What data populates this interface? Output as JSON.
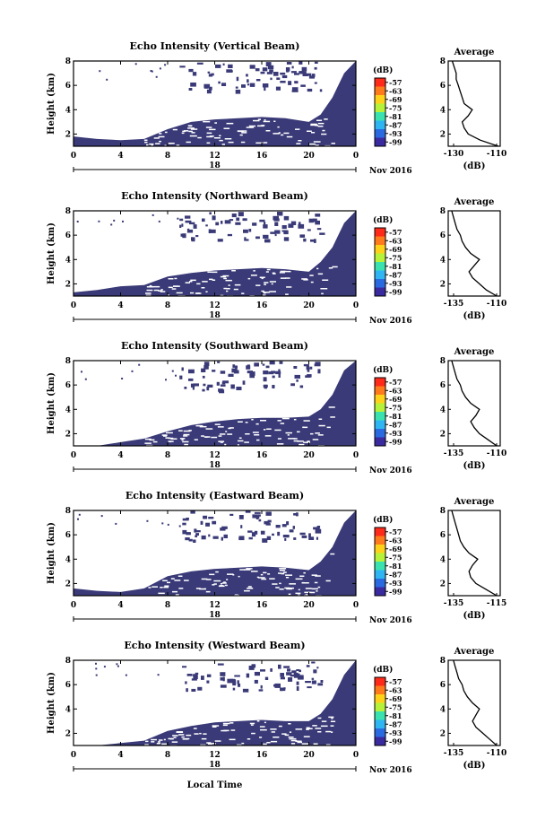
{
  "colorbar": {
    "unit": "(dB)",
    "labels": [
      "-57",
      "-63",
      "-69",
      "-75",
      "-81",
      "-87",
      "-93",
      "-99"
    ],
    "colors": [
      "#ff2a1a",
      "#ff7a1a",
      "#ffd21a",
      "#b6f23a",
      "#3ae2b0",
      "#2fb6f2",
      "#2a6ae0",
      "#3a2aa0"
    ]
  },
  "colors": {
    "echo_fill": "#3a3a78",
    "line": "#000000",
    "background": "#ffffff"
  },
  "shared_x": {
    "ticks": [
      "0",
      "4",
      "8",
      "12",
      "16",
      "20",
      "0"
    ],
    "hours": [
      0,
      4,
      8,
      12,
      16,
      20,
      24
    ],
    "date_tick": "18",
    "month_label": "Nov 2016",
    "xlabel": "Local Time"
  },
  "chart_data": [
    {
      "type": "heatmap",
      "title": "Echo Intensity (Vertical Beam)",
      "ylabel": "Height (km)",
      "yticks": [
        "2",
        "4",
        "6",
        "8"
      ],
      "ylim": [
        1,
        8
      ],
      "xlim": [
        0,
        24
      ],
      "echo_boundary_height_km": {
        "x": [
          0,
          2,
          4,
          6,
          8,
          10,
          12,
          14,
          16,
          18,
          20,
          21,
          22,
          23,
          24
        ],
        "y": [
          1.8,
          1.6,
          1.5,
          1.6,
          2.4,
          3.0,
          3.2,
          3.3,
          3.4,
          3.3,
          3.0,
          3.6,
          5.0,
          7.0,
          8.0
        ]
      },
      "average": {
        "title": "Average",
        "xlabel": "(dB)",
        "xticks": [
          "-130",
          "-110"
        ],
        "xlim": [
          -134,
          -108
        ],
        "yticks": [
          "2",
          "4",
          "6",
          "8"
        ],
        "profile": {
          "height_km": [
            1.0,
            1.5,
            2.0,
            2.5,
            3.0,
            3.5,
            4.0,
            4.5,
            5.0,
            5.5,
            6.0,
            6.5,
            7.0,
            7.5,
            8.0
          ],
          "db": [
            -109,
            -118,
            -124,
            -126,
            -127,
            -124,
            -122,
            -126,
            -127,
            -128,
            -129,
            -130,
            -130,
            -131,
            -132
          ]
        }
      }
    },
    {
      "type": "heatmap",
      "title": "Echo Intensity (Northward Beam)",
      "ylabel": "Height (km)",
      "yticks": [
        "2",
        "4",
        "6",
        "8"
      ],
      "ylim": [
        1,
        8
      ],
      "xlim": [
        0,
        24
      ],
      "echo_boundary_height_km": {
        "x": [
          0,
          2,
          4,
          6,
          8,
          10,
          12,
          14,
          16,
          18,
          20,
          21,
          22,
          23,
          24
        ],
        "y": [
          1.3,
          1.5,
          1.8,
          1.9,
          2.6,
          2.9,
          3.1,
          3.2,
          3.3,
          3.2,
          3.0,
          3.8,
          5.0,
          7.0,
          8.0
        ]
      },
      "average": {
        "title": "Average",
        "xlabel": "(dB)",
        "xticks": [
          "-135",
          "-110"
        ],
        "xlim": [
          -138,
          -108
        ],
        "yticks": [
          "2",
          "4",
          "6",
          "8"
        ],
        "profile": {
          "height_km": [
            1.0,
            1.5,
            2.0,
            2.5,
            3.0,
            3.5,
            4.0,
            4.5,
            5.0,
            5.5,
            6.0,
            6.5,
            7.0,
            7.5,
            8.0
          ],
          "db": [
            -110,
            -116,
            -120,
            -124,
            -126,
            -123,
            -120,
            -125,
            -128,
            -130,
            -131,
            -133,
            -134,
            -135,
            -136
          ]
        }
      }
    },
    {
      "type": "heatmap",
      "title": "Echo Intensity (Southward Beam)",
      "ylabel": "Height (km)",
      "yticks": [
        "2",
        "4",
        "6",
        "8"
      ],
      "ylim": [
        1,
        8
      ],
      "xlim": [
        0,
        24
      ],
      "echo_boundary_height_km": {
        "x": [
          0,
          2,
          4,
          6,
          8,
          10,
          12,
          14,
          16,
          18,
          20,
          21,
          22,
          23,
          24
        ],
        "y": [
          1.0,
          1.0,
          1.3,
          1.6,
          2.2,
          2.7,
          3.0,
          3.2,
          3.3,
          3.3,
          3.4,
          4.0,
          5.2,
          7.2,
          8.0
        ]
      },
      "average": {
        "title": "Average",
        "xlabel": "(dB)",
        "xticks": [
          "-135",
          "-110"
        ],
        "xlim": [
          -138,
          -108
        ],
        "yticks": [
          "2",
          "4",
          "6",
          "8"
        ],
        "profile": {
          "height_km": [
            1.0,
            1.5,
            2.0,
            2.5,
            3.0,
            3.5,
            4.0,
            4.5,
            5.0,
            5.5,
            6.0,
            6.5,
            7.0,
            7.5,
            8.0
          ],
          "db": [
            -110,
            -115,
            -120,
            -123,
            -125,
            -122,
            -120,
            -125,
            -128,
            -130,
            -131,
            -133,
            -134,
            -135,
            -136
          ]
        }
      }
    },
    {
      "type": "heatmap",
      "title": "Echo Intensity (Eastward Beam)",
      "ylabel": "Height (km)",
      "yticks": [
        "2",
        "4",
        "6",
        "8"
      ],
      "ylim": [
        1,
        8
      ],
      "xlim": [
        0,
        24
      ],
      "echo_boundary_height_km": {
        "x": [
          0,
          2,
          4,
          6,
          8,
          10,
          12,
          14,
          16,
          18,
          20,
          21,
          22,
          23,
          24
        ],
        "y": [
          1.6,
          1.4,
          1.3,
          1.6,
          2.6,
          3.0,
          3.2,
          3.3,
          3.4,
          3.3,
          3.1,
          3.8,
          5.0,
          7.0,
          8.0
        ]
      },
      "average": {
        "title": "Average",
        "xlabel": "(dB)",
        "xticks": [
          "-135",
          "-115"
        ],
        "xlim": [
          -138,
          -108
        ],
        "yticks": [
          "2",
          "4",
          "6",
          "8"
        ],
        "profile": {
          "height_km": [
            1.0,
            1.5,
            2.0,
            2.5,
            3.0,
            3.5,
            4.0,
            4.5,
            5.0,
            5.5,
            6.0,
            6.5,
            7.0,
            7.5,
            8.0
          ],
          "db": [
            -110,
            -116,
            -122,
            -125,
            -126,
            -124,
            -121,
            -126,
            -129,
            -131,
            -132,
            -133,
            -134,
            -135,
            -136
          ]
        }
      }
    },
    {
      "type": "heatmap",
      "title": "Echo Intensity (Westward Beam)",
      "ylabel": "Height (km)",
      "yticks": [
        "2",
        "4",
        "6",
        "8"
      ],
      "ylim": [
        1,
        8
      ],
      "xlim": [
        0,
        24
      ],
      "echo_boundary_height_km": {
        "x": [
          0,
          2,
          4,
          6,
          8,
          10,
          12,
          14,
          16,
          18,
          20,
          21,
          22,
          23,
          24
        ],
        "y": [
          1.0,
          1.0,
          1.2,
          1.4,
          2.2,
          2.6,
          2.9,
          3.0,
          3.1,
          3.0,
          3.0,
          3.6,
          4.8,
          6.8,
          8.0
        ]
      },
      "average": {
        "title": "Average",
        "xlabel": "(dB)",
        "xticks": [
          "-135",
          "-110"
        ],
        "xlim": [
          -138,
          -108
        ],
        "yticks": [
          "2",
          "4",
          "6",
          "8"
        ],
        "profile": {
          "height_km": [
            1.0,
            1.5,
            2.0,
            2.5,
            3.0,
            3.5,
            4.0,
            4.5,
            5.0,
            5.5,
            6.0,
            6.5,
            7.0,
            7.5,
            8.0
          ],
          "db": [
            -110,
            -114,
            -118,
            -122,
            -124,
            -122,
            -120,
            -124,
            -127,
            -129,
            -130,
            -132,
            -133,
            -134,
            -135
          ]
        }
      }
    }
  ]
}
